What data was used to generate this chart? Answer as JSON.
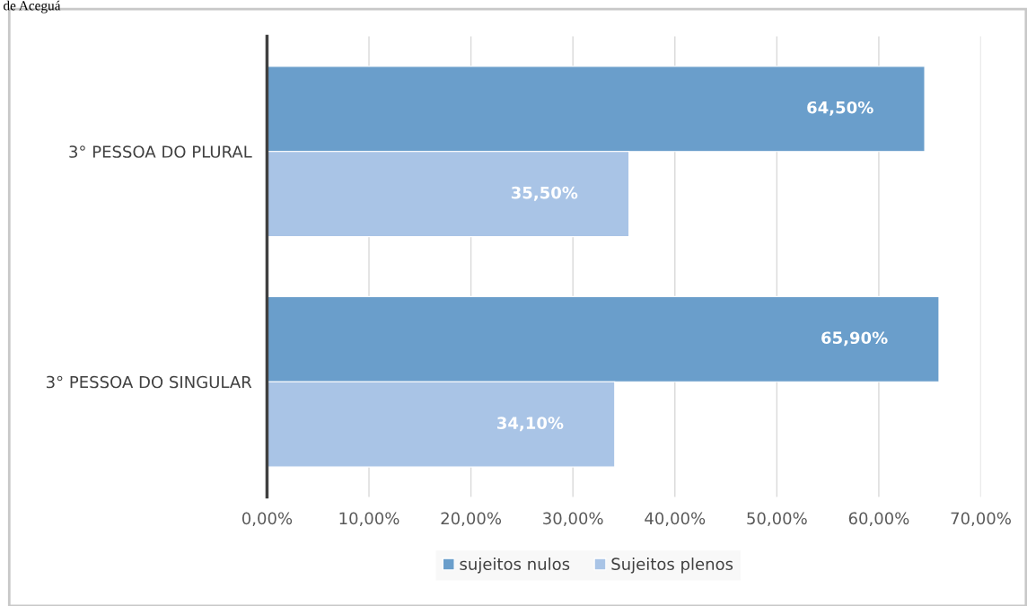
{
  "chart_data": {
    "type": "bar",
    "orientation": "horizontal",
    "annotations": [
      "de Aceguá"
    ],
    "categories": [
      "3° PESSOA DO PLURAL",
      "3° PESSOA DO SINGULAR"
    ],
    "series": [
      {
        "name": "sujeitos nulos",
        "color": "#6a9ecb",
        "values": [
          64.5,
          65.9
        ],
        "value_labels": [
          "64,50%",
          "65,90%"
        ]
      },
      {
        "name": "Sujeitos plenos",
        "color": "#a9c4e6",
        "values": [
          35.5,
          34.1
        ],
        "value_labels": [
          "35,50%",
          "34,10%"
        ]
      }
    ],
    "xlim": [
      0,
      70
    ],
    "xticks": [
      {
        "value": 0,
        "label": "0,00%"
      },
      {
        "value": 10,
        "label": "10,00%"
      },
      {
        "value": 20,
        "label": "20,00%"
      },
      {
        "value": 30,
        "label": "30,00%"
      },
      {
        "value": 40,
        "label": "40,00%"
      },
      {
        "value": 50,
        "label": "50,00%"
      },
      {
        "value": 60,
        "label": "60,00%"
      },
      {
        "value": 70,
        "label": "70,00%"
      }
    ],
    "grid": "x",
    "legend": "bottom"
  }
}
